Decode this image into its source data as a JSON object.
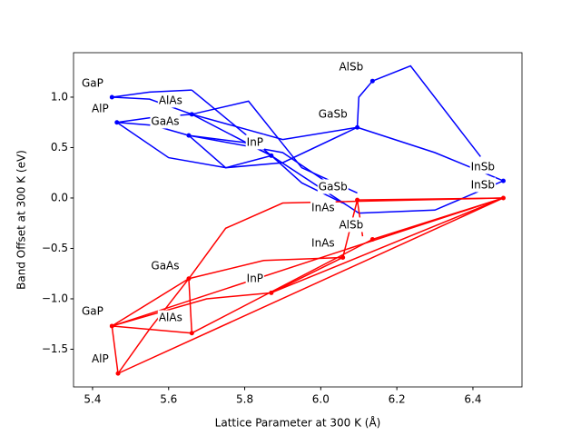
{
  "chart_data": {
    "type": "line",
    "xlabel": "Lattice Parameter at 300 K (Å)",
    "ylabel": "Band Offset at 300 K (eV)",
    "xlim": [
      5.35,
      6.529
    ],
    "ylim": [
      -1.874,
      1.441
    ],
    "xticks": [
      5.4,
      5.6,
      5.8,
      {
        "value": 6.0,
        "label": "6.0"
      },
      6.2,
      6.4
    ],
    "yticks": [
      {
        "value": 1.0,
        "label": "1.0"
      },
      0.5,
      {
        "value": 0.0,
        "label": "0.0"
      },
      {
        "value": -0.5,
        "label": "−0.5"
      },
      {
        "value": -1.0,
        "label": "−1.0"
      },
      {
        "value": -1.5,
        "label": "−1.5"
      }
    ],
    "series": [
      {
        "color": "#0000ff",
        "x": [
          5.451,
          5.55,
          5.661
        ],
        "y": [
          1.0,
          1.05,
          1.07
        ]
      },
      {
        "color": "#0000ff",
        "x": [
          5.451,
          5.55,
          5.661
        ],
        "y": [
          1.0,
          0.98,
          0.83
        ]
      },
      {
        "color": "#0000ff",
        "x": [
          5.464,
          5.56,
          5.661
        ],
        "y": [
          0.75,
          0.8,
          0.83
        ]
      },
      {
        "color": "#0000ff",
        "x": [
          5.464,
          5.56,
          5.653
        ],
        "y": [
          0.75,
          0.72,
          0.62
        ]
      },
      {
        "color": "#0000ff",
        "x": [
          5.464,
          5.6,
          5.75,
          5.87
        ],
        "y": [
          0.75,
          0.4,
          0.3,
          0.42
        ]
      },
      {
        "color": "#0000ff",
        "x": [
          5.661,
          5.81,
          5.95,
          6.096
        ],
        "y": [
          0.83,
          0.96,
          0.3,
          0.05
        ]
      },
      {
        "color": "#0000ff",
        "x": [
          5.661,
          5.87
        ],
        "y": [
          1.07,
          0.42
        ]
      },
      {
        "color": "#0000ff",
        "x": [
          5.653,
          5.8,
          5.87
        ],
        "y": [
          0.62,
          0.55,
          0.42
        ]
      },
      {
        "color": "#0000ff",
        "x": [
          5.661,
          5.87
        ],
        "y": [
          0.83,
          0.42
        ]
      },
      {
        "color": "#0000ff",
        "x": [
          5.653,
          5.75,
          5.9,
          6.096
        ],
        "y": [
          0.62,
          0.3,
          0.35,
          0.7
        ]
      },
      {
        "color": "#0000ff",
        "x": [
          5.661,
          5.9,
          6.096
        ],
        "y": [
          0.83,
          0.58,
          0.7
        ]
      },
      {
        "color": "#0000ff",
        "x": [
          6.136,
          6.236,
          6.42
        ],
        "y": [
          1.16,
          1.31,
          0.41
        ]
      },
      {
        "color": "#0000ff",
        "x": [
          6.096,
          6.3,
          6.48
        ],
        "y": [
          0.7,
          0.45,
          0.17
        ]
      },
      {
        "color": "#0000ff",
        "x": [
          6.136,
          6.1,
          6.096
        ],
        "y": [
          1.16,
          1.0,
          0.7
        ]
      },
      {
        "color": "#0000ff",
        "x": [
          5.87,
          6.1,
          6.3,
          6.48
        ],
        "y": [
          0.42,
          -0.15,
          -0.12,
          0.17
        ]
      },
      {
        "color": "#0000ff",
        "x": [
          5.653,
          5.9,
          6.058
        ],
        "y": [
          0.62,
          0.45,
          0.05
        ]
      },
      {
        "color": "#0000ff",
        "x": [
          5.87,
          5.95,
          6.058
        ],
        "y": [
          0.42,
          0.15,
          -0.05
        ]
      },
      {
        "color": "#ff0000",
        "x": [
          5.451,
          5.467
        ],
        "y": [
          -1.27,
          -1.74
        ]
      },
      {
        "color": "#ff0000",
        "x": [
          5.451,
          5.653
        ],
        "y": [
          -1.27,
          -0.8
        ]
      },
      {
        "color": "#ff0000",
        "x": [
          5.451,
          5.661
        ],
        "y": [
          -1.27,
          -1.34
        ]
      },
      {
        "color": "#ff0000",
        "x": [
          5.467,
          5.55,
          5.653
        ],
        "y": [
          -1.74,
          -1.3,
          -0.8
        ]
      },
      {
        "color": "#ff0000",
        "x": [
          5.653,
          5.661
        ],
        "y": [
          -0.8,
          -1.34
        ]
      },
      {
        "color": "#ff0000",
        "x": [
          5.451,
          5.7,
          5.87
        ],
        "y": [
          -1.27,
          -1.0,
          -0.94
        ]
      },
      {
        "color": "#ff0000",
        "x": [
          5.653,
          5.85,
          6.058
        ],
        "y": [
          -0.8,
          -0.62,
          -0.59
        ]
      },
      {
        "color": "#ff0000",
        "x": [
          5.451,
          6.48
        ],
        "y": [
          -1.27,
          0.0
        ]
      },
      {
        "color": "#ff0000",
        "x": [
          5.467,
          6.48
        ],
        "y": [
          -1.74,
          0.0
        ]
      },
      {
        "color": "#ff0000",
        "x": [
          5.653,
          5.75,
          5.9,
          6.48
        ],
        "y": [
          -0.8,
          -0.3,
          -0.05,
          0.0
        ]
      },
      {
        "color": "#ff0000",
        "x": [
          5.661,
          6.136
        ],
        "y": [
          -1.34,
          -0.41
        ]
      },
      {
        "color": "#ff0000",
        "x": [
          5.87,
          6.058
        ],
        "y": [
          -0.94,
          -0.59
        ]
      },
      {
        "color": "#ff0000",
        "x": [
          5.87,
          6.48
        ],
        "y": [
          -0.94,
          0.0
        ]
      },
      {
        "color": "#ff0000",
        "x": [
          6.058,
          6.096,
          6.11
        ],
        "y": [
          -0.59,
          -0.02,
          -0.38
        ]
      },
      {
        "color": "#ff0000",
        "x": [
          6.136,
          6.48
        ],
        "y": [
          -0.41,
          0.0
        ]
      },
      {
        "color": "#ff0000",
        "x": [
          6.096,
          6.48
        ],
        "y": [
          -0.02,
          0.0
        ]
      }
    ],
    "points": [
      {
        "color": "#0000ff",
        "x": [
          5.451,
          5.464,
          5.661,
          5.653,
          5.87,
          6.136,
          6.096,
          6.48
        ],
        "y": [
          1.0,
          0.75,
          0.83,
          0.62,
          0.42,
          1.16,
          0.7,
          0.17
        ]
      },
      {
        "color": "#ff0000",
        "x": [
          5.451,
          5.467,
          5.653,
          5.661,
          5.87,
          6.058,
          6.096,
          6.136,
          6.48
        ],
        "y": [
          -1.27,
          -1.74,
          -0.8,
          -1.34,
          -0.94,
          -0.59,
          -0.02,
          -0.41,
          0.0
        ]
      }
    ],
    "annotations": [
      {
        "text": "GaP",
        "x": 5.4,
        "y": 1.135
      },
      {
        "text": "AlAs",
        "x": 5.605,
        "y": 0.964
      },
      {
        "text": "AlP",
        "x": 5.42,
        "y": 0.883
      },
      {
        "text": "GaAs",
        "x": 5.591,
        "y": 0.757
      },
      {
        "text": "AlSb",
        "x": 6.08,
        "y": 1.297
      },
      {
        "text": "GaSb",
        "x": 6.032,
        "y": 0.829
      },
      {
        "text": "InP",
        "x": 5.827,
        "y": 0.55
      },
      {
        "text": "InSb",
        "x": 6.426,
        "y": 0.306
      },
      {
        "text": "InSb",
        "x": 6.426,
        "y": 0.126
      },
      {
        "text": "GaSb",
        "x": 6.032,
        "y": 0.108
      },
      {
        "text": "InAs",
        "x": 6.006,
        "y": -0.099
      },
      {
        "text": "AlSb",
        "x": 6.08,
        "y": -0.27
      },
      {
        "text": "InAs",
        "x": 6.006,
        "y": -0.45
      },
      {
        "text": "GaAs",
        "x": 5.591,
        "y": -0.676
      },
      {
        "text": "InP",
        "x": 5.827,
        "y": -0.8
      },
      {
        "text": "GaP",
        "x": 5.4,
        "y": -1.126
      },
      {
        "text": "AlAs",
        "x": 5.605,
        "y": -1.19
      },
      {
        "text": "AlP",
        "x": 5.42,
        "y": -1.6
      }
    ]
  }
}
